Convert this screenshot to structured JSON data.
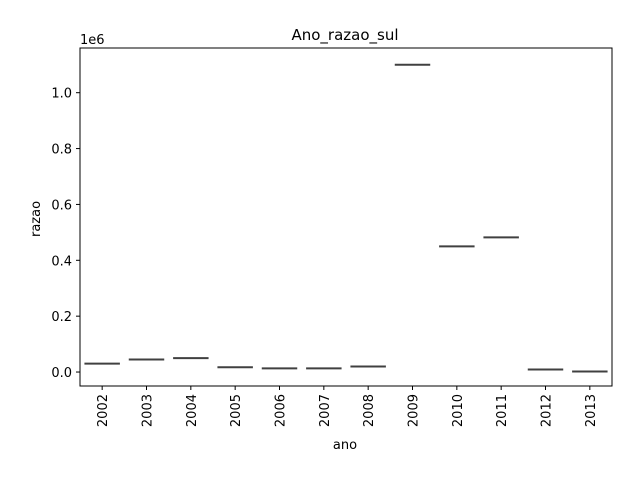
{
  "chart_data": {
    "type": "box",
    "title": "Ano_razao_sul",
    "xlabel": "ano",
    "ylabel": "razao",
    "y_scale_label": "1e6",
    "ylim": [
      -50000,
      1160000
    ],
    "yticks": [
      0,
      200000,
      400000,
      600000,
      800000,
      1000000
    ],
    "ytick_labels": [
      "0.0",
      "0.2",
      "0.4",
      "0.6",
      "0.8",
      "1.0"
    ],
    "categories": [
      "2002",
      "2003",
      "2004",
      "2005",
      "2006",
      "2007",
      "2008",
      "2009",
      "2010",
      "2011",
      "2012",
      "2013"
    ],
    "values": [
      30000,
      45000,
      50000,
      17000,
      13000,
      13000,
      20000,
      1100000,
      450000,
      482000,
      9000,
      2000
    ],
    "grid": false,
    "colors": {
      "median_line": "#404040",
      "axes": "#000000"
    }
  }
}
